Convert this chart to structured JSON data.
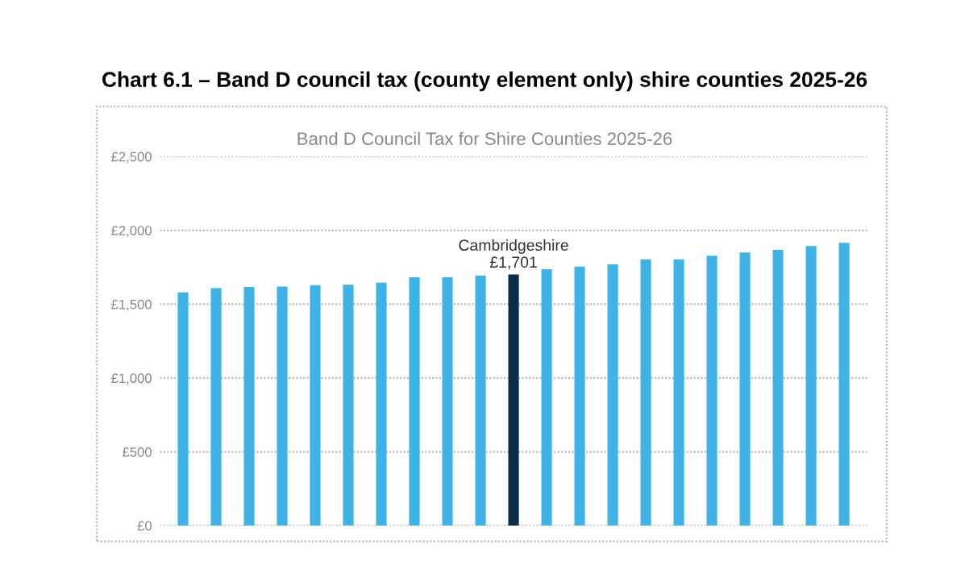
{
  "chart_data": {
    "type": "bar",
    "title": "Chart 6.1 – Band D council tax (county element only) shire counties 2025-26",
    "subtitle": "Band D Council Tax for Shire Counties 2025-26",
    "categories": [
      null,
      null,
      null,
      null,
      null,
      null,
      null,
      null,
      null,
      null,
      null,
      null,
      null,
      null,
      null,
      null,
      null,
      null,
      null,
      null,
      null
    ],
    "values": [
      1580,
      1609,
      1616,
      1620,
      1627,
      1631,
      1645,
      1682,
      1682,
      1693,
      1701,
      1737,
      1755,
      1770,
      1803,
      1803,
      1828,
      1850,
      1868,
      1894,
      1916
    ],
    "colors": [
      "#3fb3e6",
      "#3fb3e6",
      "#3fb3e6",
      "#3fb3e6",
      "#3fb3e6",
      "#3fb3e6",
      "#3fb3e6",
      "#3fb3e6",
      "#3fb3e6",
      "#3fb3e6",
      "#0e2b47",
      "#3fb3e6",
      "#3fb3e6",
      "#3fb3e6",
      "#3fb3e6",
      "#3fb3e6",
      "#3fb3e6",
      "#3fb3e6",
      "#3fb3e6",
      "#3fb3e6",
      "#3fb3e6"
    ],
    "value_labels": [
      null,
      null,
      null,
      null,
      null,
      null,
      null,
      null,
      null,
      null,
      "£1,701",
      null,
      null,
      null,
      null,
      null,
      null,
      null,
      null,
      null,
      null
    ],
    "annotations": [
      "Cambridgeshire"
    ],
    "ylim": [
      0,
      2500
    ],
    "yticks": [
      {
        "value": 0,
        "label": "£0"
      },
      {
        "value": 500,
        "label": "£500"
      },
      {
        "value": 1000,
        "label": "£1,000"
      },
      {
        "value": 1500,
        "label": "£1,500"
      },
      {
        "value": 2000,
        "label": "£2,000"
      },
      {
        "value": 2500,
        "label": "£2,500"
      }
    ],
    "grid": "y"
  }
}
